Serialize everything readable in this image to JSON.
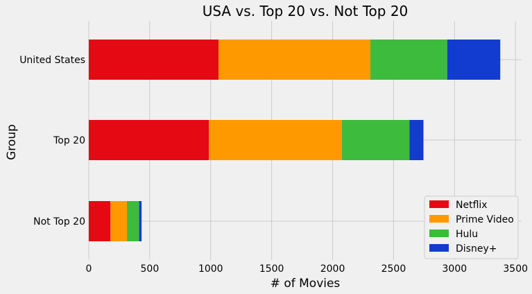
{
  "chart_data": {
    "type": "bar",
    "orientation": "horizontal",
    "stacked": true,
    "title": "USA vs. Top 20 vs. Not Top 20",
    "xlabel": "# of Movies",
    "ylabel": "Group",
    "xlim": [
      0,
      3550
    ],
    "xticks": [
      0,
      500,
      1000,
      1500,
      2000,
      2500,
      3000,
      3500
    ],
    "categories": [
      "United States",
      "Top 20",
      "Not Top 20"
    ],
    "series": [
      {
        "name": "Netflix",
        "color": "#e50914",
        "values": [
          1065,
          985,
          178
        ]
      },
      {
        "name": "Prime Video",
        "color": "#ff9900",
        "values": [
          1245,
          1090,
          135
        ]
      },
      {
        "name": "Hulu",
        "color": "#3dbb3d",
        "values": [
          630,
          555,
          100
        ]
      },
      {
        "name": "Disney+",
        "color": "#113ccf",
        "values": [
          435,
          115,
          20
        ]
      }
    ],
    "grid": true,
    "legend_position": "bottom-right"
  }
}
